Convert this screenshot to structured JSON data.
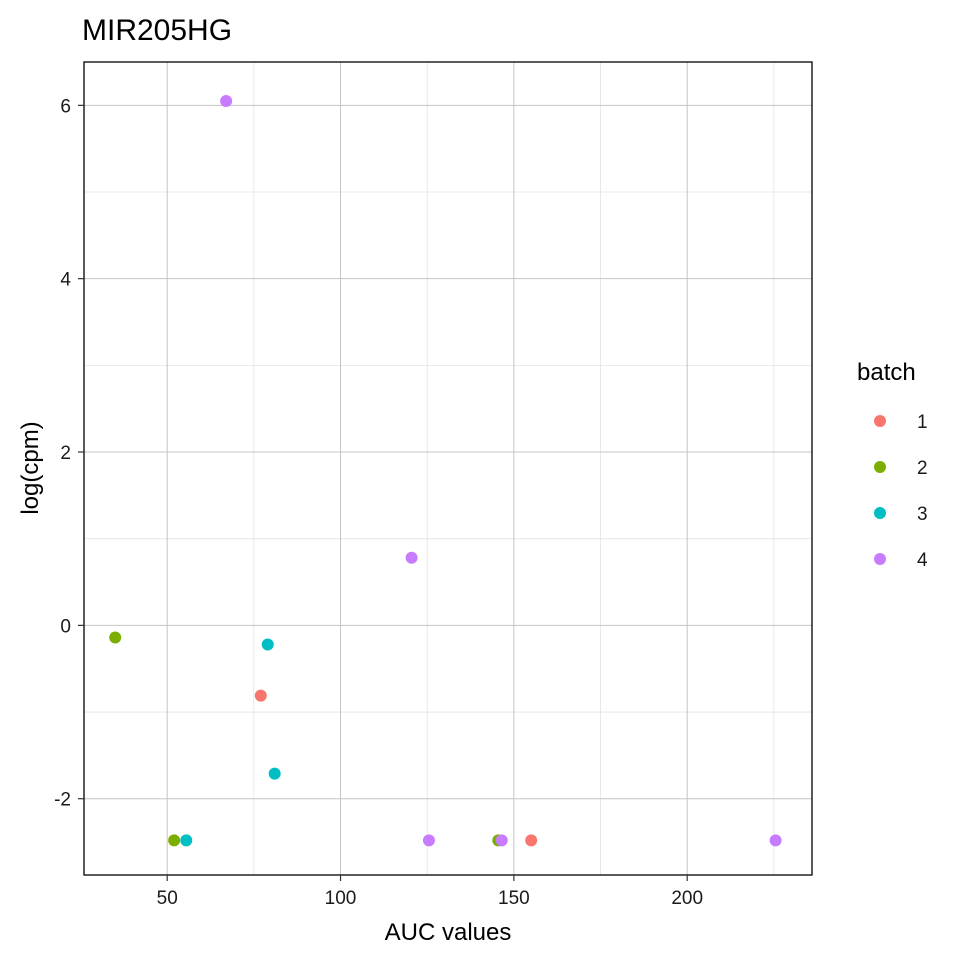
{
  "chart_data": {
    "type": "scatter",
    "title": "MIR205HG",
    "xlabel": "AUC values",
    "ylabel": "log(cpm)",
    "xlim": [
      26,
      236
    ],
    "ylim": [
      -2.88,
      6.5
    ],
    "x_ticks": [
      50,
      100,
      150,
      200
    ],
    "y_ticks": [
      -2,
      0,
      2,
      4,
      6
    ],
    "x_tick_labels": [
      "50",
      "100",
      "150",
      "200"
    ],
    "y_tick_labels": [
      "-2",
      "0",
      "2",
      "4",
      "6"
    ],
    "grid": true,
    "legend": {
      "title": "batch",
      "position": "right"
    },
    "series": [
      {
        "name": "1",
        "color": "#F8766D",
        "points": [
          {
            "x": 77,
            "y": -0.81
          },
          {
            "x": 155,
            "y": -2.48
          }
        ]
      },
      {
        "name": "2",
        "color": "#7CAE00",
        "points": [
          {
            "x": 35,
            "y": -0.14
          },
          {
            "x": 52,
            "y": -2.48
          },
          {
            "x": 145.5,
            "y": -2.48
          }
        ]
      },
      {
        "name": "3",
        "color": "#00BFC4",
        "points": [
          {
            "x": 79,
            "y": -0.22
          },
          {
            "x": 81,
            "y": -1.71
          },
          {
            "x": 55.5,
            "y": -2.48
          }
        ]
      },
      {
        "name": "4",
        "color": "#C77CFF",
        "points": [
          {
            "x": 67,
            "y": 6.05
          },
          {
            "x": 120.5,
            "y": 0.78
          },
          {
            "x": 125.5,
            "y": -2.48
          },
          {
            "x": 146.5,
            "y": -2.48
          },
          {
            "x": 225.5,
            "y": -2.48
          }
        ]
      }
    ]
  }
}
